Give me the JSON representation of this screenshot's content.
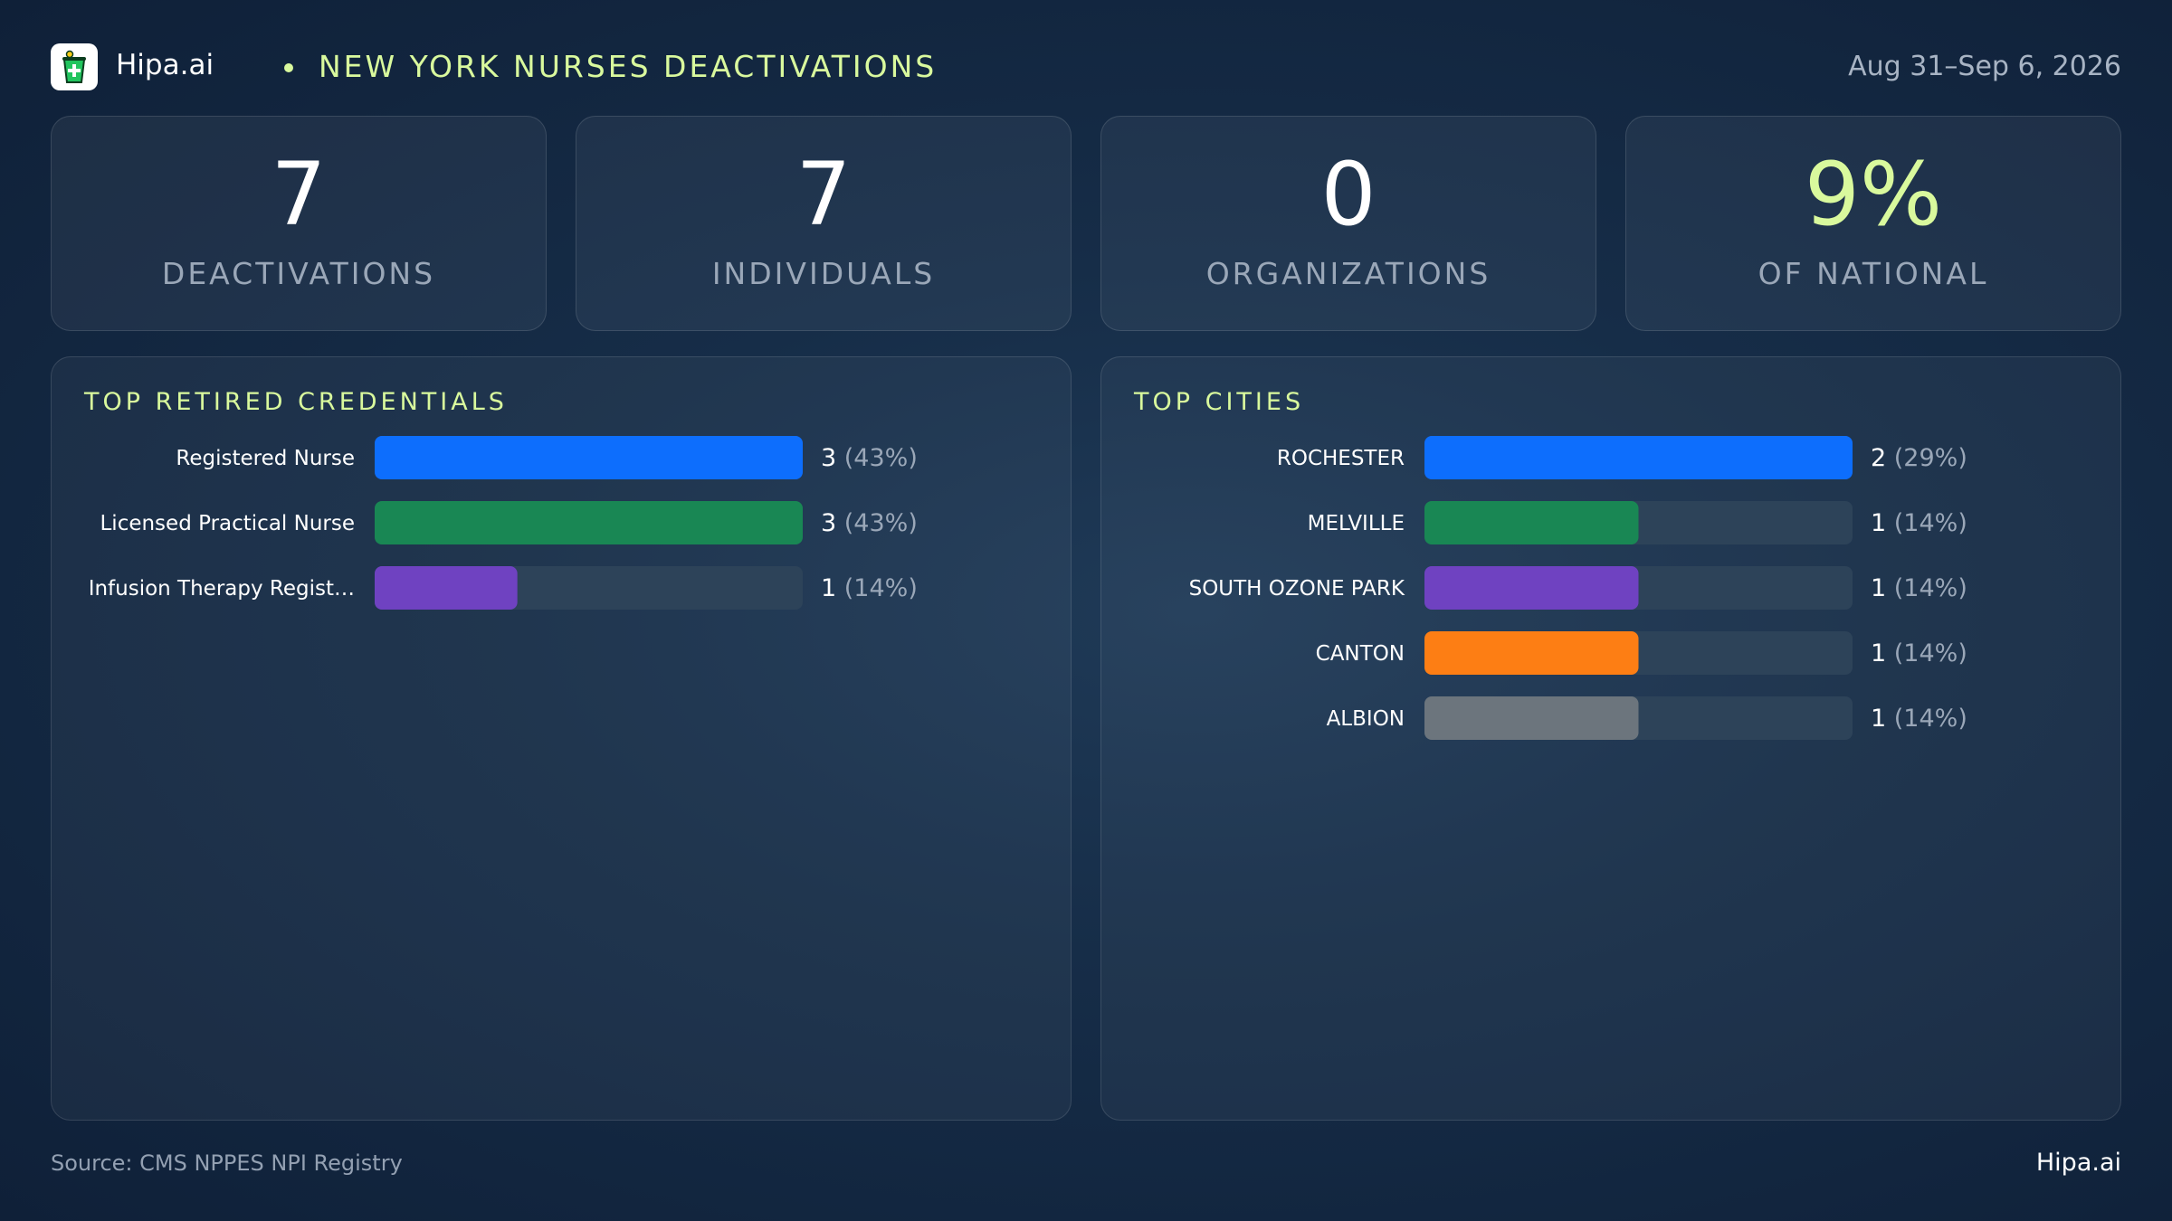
{
  "header": {
    "brand": "Hipa.ai",
    "title": "NEW YORK NURSES DEACTIVATIONS",
    "date_range": "Aug 31–Sep 6, 2026"
  },
  "colors": {
    "accent": "#d9f99d",
    "bar_track": "#2d4359",
    "label_text": "#ffffff",
    "pct_text": "#9aa7b8"
  },
  "kpis": [
    {
      "value": "7",
      "label": "DEACTIVATIONS",
      "color": "#ffffff"
    },
    {
      "value": "7",
      "label": "INDIVIDUALS",
      "color": "#ffffff"
    },
    {
      "value": "0",
      "label": "ORGANIZATIONS",
      "color": "#ffffff"
    },
    {
      "value": "9%",
      "label": "OF NATIONAL",
      "color": "#d9f99d"
    }
  ],
  "chart_data": [
    {
      "type": "bar",
      "orientation": "horizontal",
      "title": "TOP RETIRED CREDENTIALS",
      "categories": [
        "Registered Nurse",
        "Licensed Practical Nurse",
        "Infusion Therapy Regist…"
      ],
      "values": [
        3,
        3,
        1
      ],
      "percent_labels": [
        "(43%)",
        "(43%)",
        "(14%)"
      ],
      "colors": [
        "#0d6efd",
        "#198754",
        "#6f42c1"
      ],
      "xlim": [
        0,
        3
      ]
    },
    {
      "type": "bar",
      "orientation": "horizontal",
      "title": "TOP CITIES",
      "categories": [
        "ROCHESTER",
        "MELVILLE",
        "SOUTH OZONE PARK",
        "CANTON",
        "ALBION"
      ],
      "values": [
        2,
        1,
        1,
        1,
        1
      ],
      "percent_labels": [
        "(29%)",
        "(14%)",
        "(14%)",
        "(14%)",
        "(14%)"
      ],
      "colors": [
        "#0d6efd",
        "#198754",
        "#6f42c1",
        "#fd7e14",
        "#6c757d"
      ],
      "xlim": [
        0,
        2
      ]
    }
  ],
  "footer": {
    "source": "Source: CMS NPPES NPI Registry",
    "brand": "Hipa.ai"
  }
}
